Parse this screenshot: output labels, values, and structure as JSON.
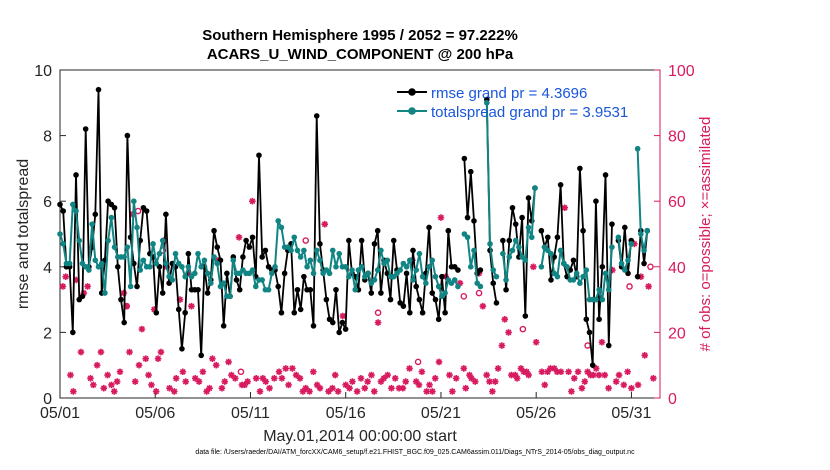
{
  "chart_data": {
    "type": "line",
    "title_lines": [
      "Southern Hemisphere 1995 / 2052 = 97.222%",
      "ACARS_U_WIND_COMPONENT @ 200 hPa"
    ],
    "xlabel": "May.01,2014 00:00:00 start",
    "ylabel_left": "rmse and totalspread",
    "ylabel_right": "# of obs: o=possible; ×=assimilated",
    "x_ticks": [
      "05/01",
      "05/06",
      "05/11",
      "05/16",
      "05/21",
      "05/26",
      "05/31"
    ],
    "x_tick_days": [
      0,
      5,
      10,
      15,
      20,
      25,
      30
    ],
    "xlim": [
      0,
      31.5
    ],
    "ylim_left": [
      0,
      10
    ],
    "yticks_left": [
      0,
      2,
      4,
      6,
      8,
      10
    ],
    "ylim_right": [
      0,
      100
    ],
    "yticks_right": [
      0,
      20,
      40,
      60,
      80,
      100
    ],
    "grid": false,
    "legend_position": "top-right",
    "series": [
      {
        "name": "rmse grand pr = 4.3696",
        "color": "#000000",
        "axis": "left",
        "marker": "circle",
        "values": [
          5.9,
          5.7,
          4.0,
          4.0,
          2.0,
          6.8,
          3.0,
          3.1,
          8.2,
          4.0,
          4.6,
          5.6,
          9.4,
          3.2,
          4.2,
          6.0,
          5.9,
          5.8,
          4.0,
          3.0,
          2.3,
          8.0,
          4.9,
          4.1,
          3.4,
          4.8,
          5.8,
          5.7,
          4.4,
          4.3,
          2.6,
          4.0,
          3.2,
          5.6,
          3.5,
          4.1,
          4.0,
          2.7,
          1.5,
          2.6,
          4.4,
          3.3,
          3.3,
          3.3,
          1.3,
          4.0,
          3.2,
          3.6,
          5.1,
          4.6,
          4.2,
          2.2,
          3.8,
          3.1,
          4.3,
          3.6,
          3.3,
          4.3,
          4.8,
          4.6,
          4.9,
          3.7,
          7.4,
          4.3,
          4.5,
          4.0,
          3.9,
          3.9,
          3.4,
          2.6,
          3.8,
          4.5,
          4.7,
          2.6,
          3.3,
          2.7,
          3.7,
          3.3,
          3.3,
          2.2,
          8.6,
          4.7,
          3.9,
          3.0,
          2.4,
          2.3,
          3.3,
          2.0,
          2.3,
          2.1,
          4.8,
          3.8,
          3.7,
          3.3,
          4.8,
          3.6,
          3.8,
          3.2,
          4.7,
          5.1,
          3.2,
          4.2,
          3.8,
          3.0,
          4.8,
          3.9,
          2.9,
          2.8,
          3.8,
          2.6,
          4.5,
          3.4,
          3.0,
          2.6,
          3.8,
          5.2,
          3.2,
          3.0,
          2.4,
          3.7,
          2.6,
          5.1,
          4.0,
          4.0,
          3.9,
          null,
          7.3,
          5.5,
          6.9,
          5.4,
          3.8,
          3.9,
          null,
          9.1,
          4.5,
          3.5,
          2.9,
          null,
          4.8,
          3.3,
          4.8,
          5.8,
          5.3,
          4.3,
          5.5,
          2.5,
          6.1,
          5.4,
          6.4,
          null,
          5.1,
          4.6,
          4.9,
          3.6,
          4.3,
          4.9,
          6.5,
          4.1,
          3.7,
          3.9,
          4.2,
          3.7,
          7.0,
          5.1,
          2.4,
          2.0,
          1.0,
          6.0,
          2.4,
          4.0,
          6.8,
          1.6,
          5.3,
          null,
          4.8,
          4.0,
          5.2,
          3.8,
          4.8,
          null,
          3.7,
          5.1,
          4.1,
          5.1
        ]
      },
      {
        "name": "totalspread grand pr = 3.9531",
        "color": "#118484",
        "axis": "left",
        "marker": "circle",
        "values": [
          5.0,
          4.7,
          4.1,
          4.1,
          5.9,
          5.7,
          4.8,
          4.1,
          4.0,
          3.9,
          5.3,
          4.2,
          4.0,
          4.1,
          3.2,
          4.8,
          5.5,
          4.6,
          4.3,
          4.3,
          4.3,
          4.6,
          3.4,
          6.0,
          5.2,
          3.9,
          4.2,
          4.0,
          4.0,
          4.7,
          4.1,
          4.4,
          4.8,
          4.1,
          3.7,
          3.6,
          4.4,
          4.1,
          4.0,
          3.7,
          4.0,
          3.7,
          3.8,
          4.4,
          4.0,
          4.2,
          3.8,
          3.5,
          4.3,
          4.1,
          3.4,
          3.5,
          3.1,
          3.1,
          4.2,
          3.8,
          3.8,
          3.9,
          3.8,
          3.8,
          3.9,
          3.4,
          3.6,
          3.6,
          3.3,
          3.3,
          3.8,
          4.0,
          5.4,
          5.2,
          4.6,
          4.6,
          4.5,
          4.9,
          4.5,
          4.3,
          4.5,
          4.0,
          4.2,
          3.8,
          4.5,
          4.2,
          3.8,
          3.9,
          3.8,
          4.5,
          4.0,
          4.4,
          4.0,
          4.0,
          3.7,
          3.9,
          3.3,
          3.9,
          4.0,
          3.7,
          3.8,
          3.5,
          3.6,
          3.9,
          4.5,
          4.1,
          4.2,
          3.7,
          3.7,
          3.8,
          3.9,
          4.1,
          4.0,
          4.2,
          3.6,
          3.9,
          4.4,
          3.7,
          3.5,
          4.0,
          4.2,
          3.7,
          3.4,
          3.1,
          3.2,
          3.6,
          3.5,
          3.6,
          3.4,
          null,
          5.0,
          4.9,
          4.0,
          4.5,
          3.5,
          3.4,
          null,
          9.0,
          4.7,
          3.9,
          3.7,
          null,
          4.4,
          3.6,
          4.3,
          4.5,
          4.8,
          4.6,
          4.3,
          4.2,
          5.2,
          4.9,
          6.4,
          null,
          4.0,
          4.6,
          4.5,
          4.4,
          3.8,
          3.7,
          4.5,
          4.1,
          4.0,
          3.6,
          3.6,
          3.8,
          3.5,
          3.7,
          3.9,
          3.0,
          3.0,
          3.0,
          3.3,
          3.0,
          3.8,
          3.3,
          4.6,
          null,
          4.9,
          4.1,
          3.9,
          4.2,
          4.7,
          null,
          7.6,
          5.0,
          4.5,
          5.1
        ]
      }
    ],
    "obs_assimilated_points": [
      [
        0.15,
        34
      ],
      [
        0.3,
        37
      ],
      [
        0.55,
        7
      ],
      [
        0.7,
        2
      ],
      [
        0.85,
        36
      ],
      [
        1.1,
        14
      ],
      [
        1.25,
        32
      ],
      [
        1.45,
        34
      ],
      [
        1.6,
        6
      ],
      [
        1.75,
        4
      ],
      [
        1.95,
        10
      ],
      [
        2.15,
        14
      ],
      [
        2.3,
        3
      ],
      [
        2.5,
        7
      ],
      [
        2.7,
        4
      ],
      [
        2.85,
        2
      ],
      [
        3.0,
        5
      ],
      [
        3.15,
        8
      ],
      [
        3.35,
        32
      ],
      [
        3.5,
        28
      ],
      [
        3.65,
        14
      ],
      [
        3.8,
        56
      ],
      [
        3.95,
        5
      ],
      [
        4.15,
        10
      ],
      [
        4.3,
        21
      ],
      [
        4.5,
        12
      ],
      [
        4.65,
        7
      ],
      [
        4.8,
        4
      ],
      [
        4.95,
        27
      ],
      [
        5.05,
        2
      ],
      [
        5.15,
        12
      ],
      [
        5.3,
        14
      ],
      [
        5.45,
        48
      ],
      [
        5.6,
        40
      ],
      [
        5.75,
        3
      ],
      [
        6.0,
        2
      ],
      [
        6.1,
        6
      ],
      [
        6.3,
        30
      ],
      [
        6.45,
        8
      ],
      [
        6.6,
        5
      ],
      [
        6.75,
        38
      ],
      [
        6.9,
        28
      ],
      [
        7.1,
        6
      ],
      [
        7.3,
        5
      ],
      [
        7.5,
        8
      ],
      [
        7.7,
        2
      ],
      [
        7.85,
        3
      ],
      [
        8.0,
        12
      ],
      [
        8.2,
        10
      ],
      [
        8.3,
        42
      ],
      [
        8.5,
        3
      ],
      [
        8.65,
        5
      ],
      [
        8.85,
        11
      ],
      [
        9.0,
        7
      ],
      [
        9.2,
        6
      ],
      [
        9.4,
        49
      ],
      [
        9.55,
        4
      ],
      [
        9.7,
        4
      ],
      [
        9.85,
        5
      ],
      [
        10.1,
        60
      ],
      [
        10.3,
        6
      ],
      [
        10.5,
        2
      ],
      [
        10.65,
        6
      ],
      [
        10.8,
        5
      ],
      [
        11.0,
        3
      ],
      [
        11.25,
        6
      ],
      [
        11.5,
        8
      ],
      [
        11.65,
        6
      ],
      [
        11.85,
        9
      ],
      [
        12.0,
        4
      ],
      [
        12.2,
        9
      ],
      [
        12.4,
        7
      ],
      [
        12.6,
        6
      ],
      [
        12.75,
        2
      ],
      [
        12.9,
        3
      ],
      [
        13.1,
        2
      ],
      [
        13.3,
        8
      ],
      [
        13.5,
        4
      ],
      [
        13.65,
        3
      ],
      [
        13.9,
        53
      ],
      [
        14.1,
        2
      ],
      [
        14.3,
        3
      ],
      [
        14.45,
        7
      ],
      [
        14.6,
        2
      ],
      [
        14.85,
        25
      ],
      [
        15.0,
        4
      ],
      [
        15.2,
        3
      ],
      [
        15.35,
        5
      ],
      [
        15.6,
        2
      ],
      [
        15.8,
        6
      ],
      [
        16.0,
        3
      ],
      [
        16.15,
        5
      ],
      [
        16.35,
        7
      ],
      [
        16.5,
        2
      ],
      [
        16.7,
        23
      ],
      [
        16.85,
        5
      ],
      [
        17.0,
        6
      ],
      [
        17.2,
        7
      ],
      [
        17.4,
        3
      ],
      [
        17.6,
        6
      ],
      [
        17.8,
        3
      ],
      [
        18.0,
        3
      ],
      [
        18.15,
        5
      ],
      [
        18.35,
        9
      ],
      [
        18.5,
        42
      ],
      [
        18.7,
        5
      ],
      [
        18.85,
        4
      ],
      [
        19.0,
        8
      ],
      [
        19.25,
        2
      ],
      [
        19.4,
        4
      ],
      [
        19.55,
        2
      ],
      [
        19.7,
        6
      ],
      [
        19.9,
        11
      ],
      [
        20.0,
        55
      ],
      [
        20.25,
        37
      ],
      [
        20.45,
        7
      ],
      [
        20.6,
        2
      ],
      [
        20.8,
        6
      ],
      [
        21.0,
        35
      ],
      [
        21.2,
        9
      ],
      [
        21.3,
        3
      ],
      [
        21.5,
        7
      ],
      [
        21.6,
        6
      ],
      [
        21.8,
        5
      ],
      [
        22.0,
        38
      ],
      [
        22.2,
        28
      ],
      [
        22.4,
        7
      ],
      [
        22.55,
        5
      ],
      [
        22.7,
        2
      ],
      [
        22.85,
        5
      ],
      [
        23.0,
        9
      ],
      [
        23.2,
        16
      ],
      [
        23.35,
        24
      ],
      [
        23.55,
        20
      ],
      [
        23.7,
        7
      ],
      [
        23.9,
        7
      ],
      [
        24.0,
        6
      ],
      [
        24.2,
        9
      ],
      [
        24.35,
        8
      ],
      [
        24.5,
        8
      ],
      [
        24.6,
        7
      ],
      [
        24.85,
        40
      ],
      [
        25.0,
        17
      ],
      [
        25.3,
        8
      ],
      [
        25.45,
        4
      ],
      [
        25.6,
        8
      ],
      [
        25.75,
        9
      ],
      [
        25.95,
        9
      ],
      [
        26.1,
        8
      ],
      [
        26.3,
        8
      ],
      [
        26.5,
        58
      ],
      [
        26.7,
        8
      ],
      [
        26.85,
        2
      ],
      [
        27.0,
        6
      ],
      [
        27.2,
        8
      ],
      [
        27.4,
        3
      ],
      [
        27.55,
        5
      ],
      [
        27.7,
        8
      ],
      [
        27.85,
        7
      ],
      [
        28.0,
        7
      ],
      [
        28.15,
        9
      ],
      [
        28.3,
        7
      ],
      [
        28.45,
        17
      ],
      [
        28.6,
        7
      ],
      [
        28.8,
        3
      ],
      [
        29.0,
        39
      ],
      [
        29.2,
        5
      ],
      [
        29.35,
        7
      ],
      [
        29.6,
        4
      ],
      [
        29.8,
        8
      ],
      [
        30.0,
        3
      ],
      [
        30.15,
        47
      ],
      [
        30.35,
        4
      ],
      [
        30.5,
        37
      ],
      [
        30.7,
        13
      ],
      [
        30.9,
        34
      ],
      [
        31.15,
        6
      ]
    ],
    "obs_possible_points": [
      [
        3.5,
        28
      ],
      [
        4.1,
        57
      ],
      [
        9.5,
        8
      ],
      [
        16.7,
        26
      ],
      [
        18.8,
        11
      ],
      [
        21.2,
        31
      ],
      [
        22.0,
        32
      ],
      [
        24.3,
        21
      ],
      [
        27.7,
        16
      ],
      [
        29.9,
        34
      ],
      [
        31.0,
        40
      ],
      [
        5.4,
        45
      ],
      [
        12.9,
        48
      ]
    ]
  },
  "footnote": "data file: /Users/raeder/DAI/ATM_forcXX/CAM6_setup/f.e21.FHIST_BGC.f09_025.CAM6assim.011/Diags_NTrS_2014-05/obs_diag_output.nc"
}
